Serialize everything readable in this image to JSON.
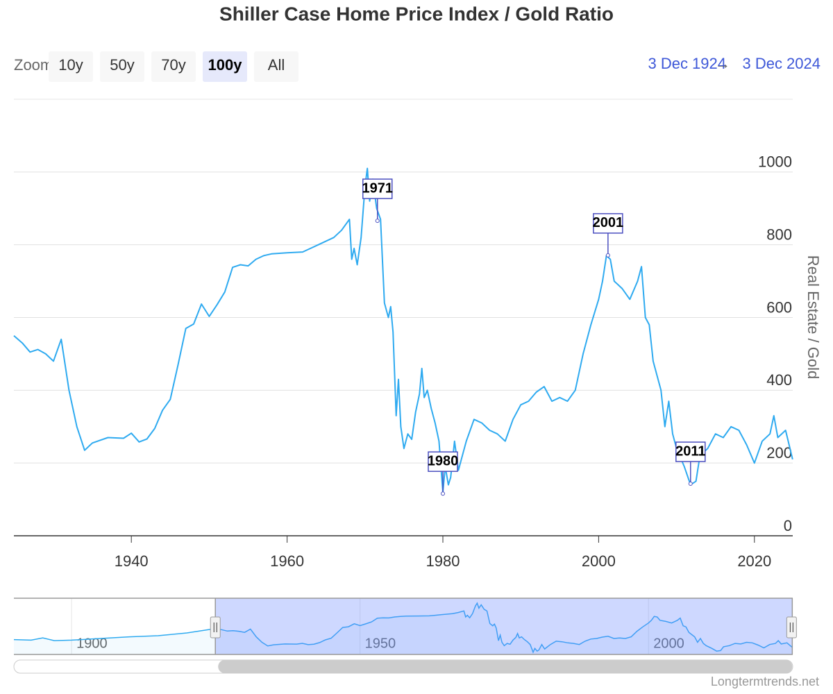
{
  "chart_data": {
    "type": "line",
    "title": "Shiller Case Home Price Index / Gold Ratio",
    "y_axis_title": "Real Estate / Gold",
    "credits": "Longtermtrends.net",
    "color": "#2eaaf0",
    "grid": true,
    "range_selector": {
      "label": "Zoom",
      "buttons": [
        "10y",
        "50y",
        "70y",
        "100y",
        "All"
      ],
      "selected": 3,
      "from": "3 Dec 1924",
      "separator": "→",
      "to": "3 Dec 2024"
    },
    "xlim": [
      1924.92,
      2024.92
    ],
    "xticks": [
      1940,
      1960,
      1980,
      2000,
      2020
    ],
    "ylim": [
      0,
      1200
    ],
    "yticks": [
      0,
      200,
      400,
      600,
      800,
      1000
    ],
    "x": [
      1924.92,
      1926,
      1927,
      1928,
      1929,
      1930,
      1931,
      1932,
      1933,
      1934,
      1935,
      1937,
      1939,
      1940,
      1941,
      1942,
      1943,
      1944,
      1945,
      1946,
      1947,
      1948,
      1949,
      1950,
      1951,
      1952,
      1953,
      1954,
      1955,
      1956,
      1957,
      1958,
      1960,
      1962,
      1963,
      1964,
      1966,
      1967,
      1968,
      1968.3,
      1968.6,
      1969,
      1969.5,
      1970,
      1970.3,
      1970.6,
      1971,
      1971.5,
      1972,
      1972.5,
      1973,
      1973.3,
      1973.6,
      1974,
      1974.3,
      1974.6,
      1975,
      1975.5,
      1976,
      1976.5,
      1977,
      1977.3,
      1977.6,
      1978,
      1978.5,
      1979,
      1979.5,
      1980,
      1980.3,
      1980.7,
      1981,
      1981.5,
      1982,
      1982.5,
      1983,
      1984,
      1985,
      1986,
      1987,
      1988,
      1989,
      1990,
      1991,
      1992,
      1993,
      1994,
      1995,
      1996,
      1997,
      1998,
      1999,
      2000,
      2000.5,
      2001,
      2001.5,
      2002,
      2003,
      2004,
      2005,
      2005.5,
      2006,
      2006.5,
      2007,
      2008,
      2008.5,
      2009,
      2009.5,
      2010,
      2011,
      2011.8,
      2012.5,
      2013,
      2014,
      2015,
      2016,
      2017,
      2018,
      2019,
      2020,
      2021,
      2022,
      2022.5,
      2023,
      2024,
      2024.9
    ],
    "values": [
      550,
      530,
      505,
      512,
      500,
      480,
      540,
      400,
      300,
      235,
      255,
      270,
      268,
      282,
      258,
      266,
      295,
      345,
      375,
      470,
      570,
      582,
      637,
      603,
      635,
      670,
      738,
      745,
      742,
      760,
      770,
      775,
      778,
      780,
      790,
      800,
      820,
      840,
      870,
      760,
      790,
      745,
      820,
      960,
      1010,
      920,
      980,
      900,
      870,
      640,
      600,
      630,
      560,
      330,
      430,
      300,
      240,
      280,
      265,
      340,
      390,
      460,
      380,
      400,
      350,
      310,
      260,
      120,
      190,
      140,
      160,
      260,
      180,
      220,
      260,
      320,
      310,
      290,
      280,
      260,
      320,
      360,
      370,
      395,
      410,
      370,
      380,
      370,
      400,
      500,
      580,
      650,
      700,
      770,
      760,
      700,
      680,
      650,
      700,
      740,
      600,
      580,
      480,
      400,
      300,
      370,
      280,
      240,
      190,
      140,
      150,
      220,
      240,
      280,
      270,
      300,
      290,
      250,
      200,
      260,
      280,
      330,
      270,
      290,
      210
    ],
    "flags": [
      {
        "title": "1971",
        "x": 1971.6,
        "y": 866
      },
      {
        "title": "1980",
        "x": 1980.0,
        "y": 116
      },
      {
        "title": "2001",
        "x": 2001.2,
        "y": 771
      },
      {
        "title": "2011",
        "x": 2011.8,
        "y": 143
      }
    ],
    "navigator": {
      "xlim": [
        1890,
        2025
      ],
      "xticks": [
        1900,
        1950,
        2000
      ],
      "ylim": [
        80,
        1100
      ],
      "x": [
        1890,
        1893,
        1895,
        1897,
        1900,
        1905,
        1910,
        1915,
        1920,
        1924.92
      ],
      "values": [
        350,
        340,
        380,
        330,
        340,
        370,
        400,
        420,
        470,
        550
      ]
    }
  }
}
